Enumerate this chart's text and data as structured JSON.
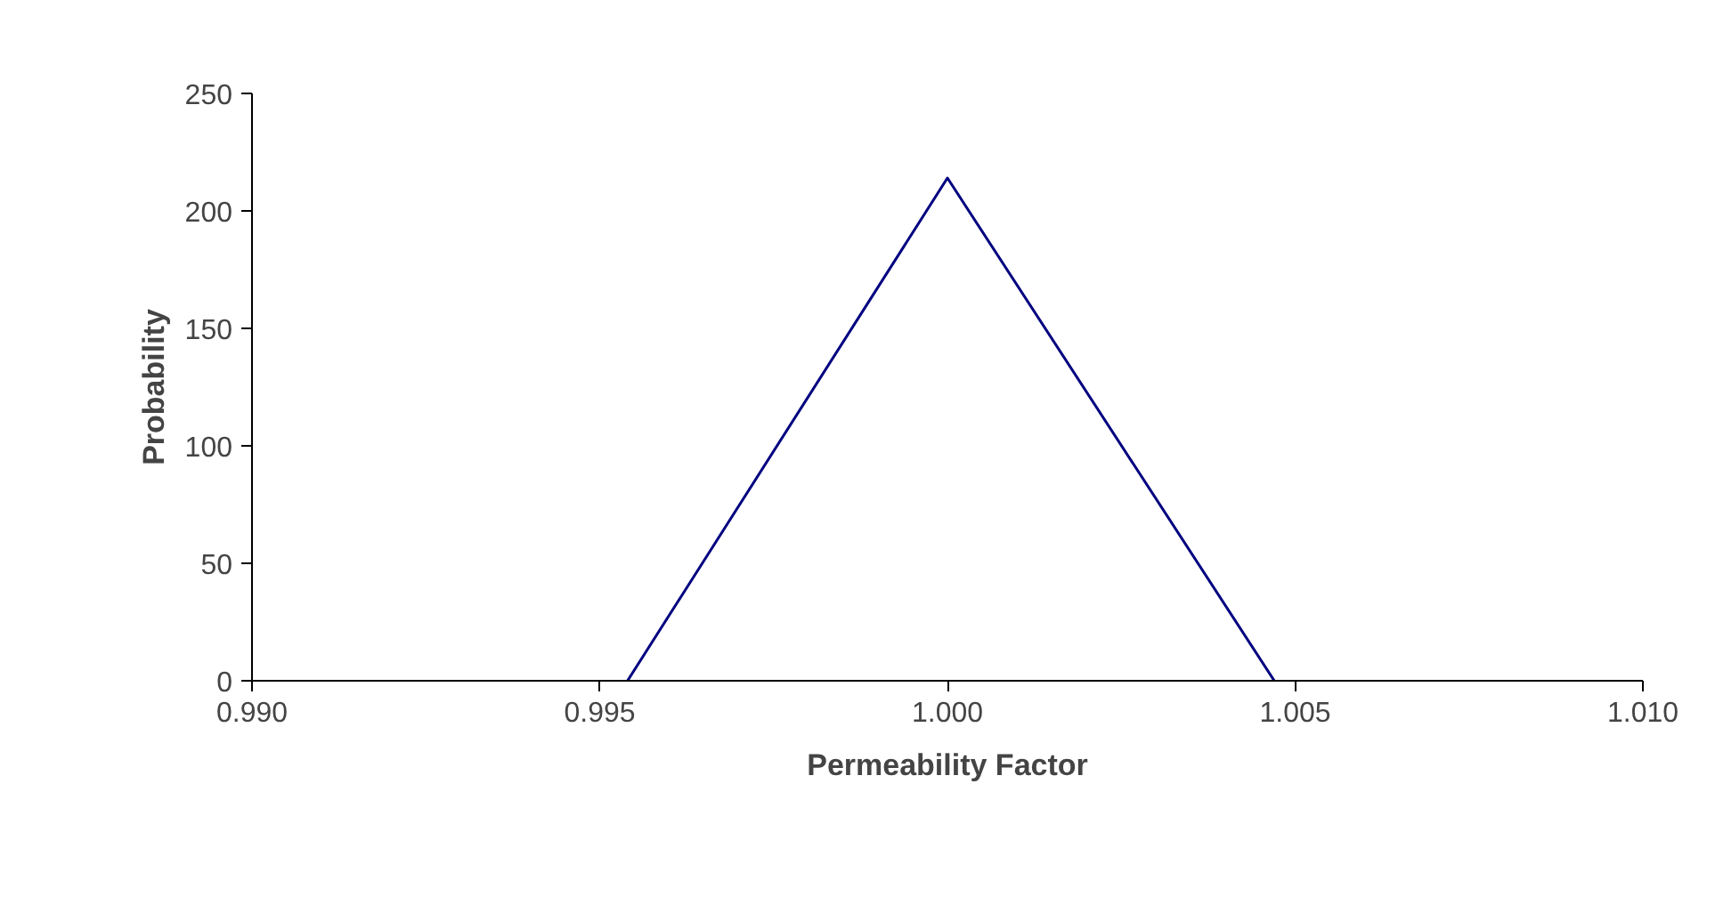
{
  "chart_data": {
    "type": "line",
    "xlabel": "Permeability Factor",
    "ylabel": "Probability",
    "x": [
      0.9954,
      1.0,
      1.0047
    ],
    "series": [
      {
        "color": "#000080",
        "values": [
          0,
          214,
          0
        ]
      }
    ],
    "xlim": [
      0.99,
      1.01
    ],
    "xticks": [
      {
        "value": 0.99,
        "label": "0.990"
      },
      {
        "value": 0.995,
        "label": "0.995"
      },
      {
        "value": 1.0,
        "label": "1.000"
      },
      {
        "value": 1.005,
        "label": "1.005"
      },
      {
        "value": 1.01,
        "label": "1.010"
      }
    ],
    "ylim": [
      0,
      250
    ],
    "yticks": [
      0,
      50,
      100,
      150,
      200,
      250
    ],
    "grid": false,
    "marker": "none",
    "line_style": "solid"
  }
}
